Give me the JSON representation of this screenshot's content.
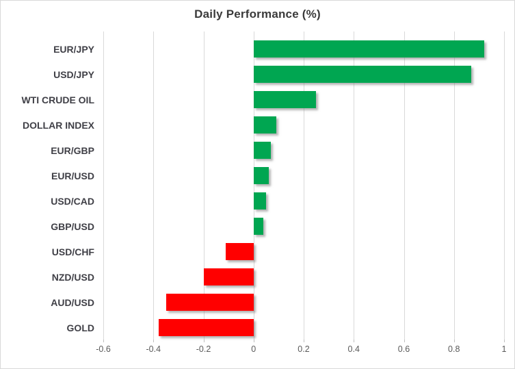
{
  "chart_data": {
    "type": "bar",
    "orientation": "horizontal",
    "title": "Daily Performance (%)",
    "categories": [
      "EUR/JPY",
      "USD/JPY",
      "WTI CRUDE OIL",
      "DOLLAR INDEX",
      "EUR/GBP",
      "EUR/USD",
      "USD/CAD",
      "GBP/USD",
      "USD/CHF",
      "NZD/USD",
      "AUD/USD",
      "GOLD"
    ],
    "values": [
      0.92,
      0.87,
      0.25,
      0.09,
      0.07,
      0.06,
      0.05,
      0.04,
      -0.11,
      -0.2,
      -0.35,
      -0.38
    ],
    "xlabel": "",
    "ylabel": "",
    "xlim": [
      -0.6,
      1.0
    ],
    "xticks": [
      {
        "value": -0.6,
        "label": "-0.6"
      },
      {
        "value": -0.4,
        "label": "-0.4"
      },
      {
        "value": -0.2,
        "label": "-0.2"
      },
      {
        "value": 0,
        "label": "0"
      },
      {
        "value": 0.2,
        "label": "0.2"
      },
      {
        "value": 0.4,
        "label": "0.4"
      },
      {
        "value": 0.6,
        "label": "0.6"
      },
      {
        "value": 0.8,
        "label": "0.8"
      },
      {
        "value": 1,
        "label": "1"
      }
    ],
    "grid": true,
    "legend": "none",
    "colors": {
      "positive": "#00A651",
      "negative": "#FF0000",
      "gridline": "#D9D9D9",
      "title_text": "#3A3A3A",
      "axis_text": "#595959",
      "category_text": "#3F3F46"
    }
  }
}
